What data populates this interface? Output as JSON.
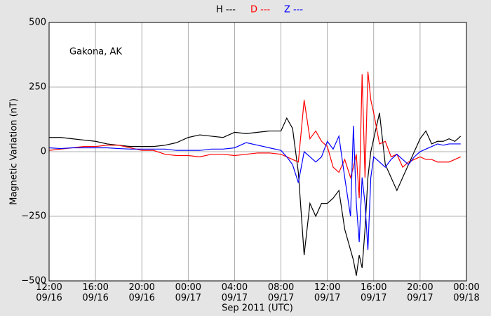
{
  "chart_data": {
    "type": "line",
    "annotation": "Gakona, AK",
    "xlabel": "Sep 2011 (UTC)",
    "ylabel": "Magnetic Variation (nT)",
    "grid": true,
    "legend": "top",
    "xlim": [
      "2011-09-16T12:00",
      "2011-09-18T00:00"
    ],
    "xticks": [
      {
        "value": "2011-09-16T12:00",
        "label": "12:00\n09/16"
      },
      {
        "value": "2011-09-16T16:00",
        "label": "16:00\n09/16"
      },
      {
        "value": "2011-09-16T20:00",
        "label": "20:00\n09/16"
      },
      {
        "value": "2011-09-17T00:00",
        "label": "00:00\n09/17"
      },
      {
        "value": "2011-09-17T04:00",
        "label": "04:00\n09/17"
      },
      {
        "value": "2011-09-17T08:00",
        "label": "08:00\n09/17"
      },
      {
        "value": "2011-09-17T12:00",
        "label": "12:00\n09/17"
      },
      {
        "value": "2011-09-17T16:00",
        "label": "16:00\n09/17"
      },
      {
        "value": "2011-09-17T20:00",
        "label": "20:00\n09/17"
      },
      {
        "value": "2011-09-18T00:00",
        "label": "00:00\n09/18"
      }
    ],
    "ylim": [
      -500,
      500
    ],
    "yticks": [
      {
        "value": -500,
        "label": "−500"
      },
      {
        "value": -250,
        "label": "−250"
      },
      0,
      250,
      500
    ],
    "x": [
      "2011-09-16T12:00",
      "2011-09-16T13:00",
      "2011-09-16T14:00",
      "2011-09-16T15:00",
      "2011-09-16T16:00",
      "2011-09-16T17:00",
      "2011-09-16T18:00",
      "2011-09-16T19:00",
      "2011-09-16T20:00",
      "2011-09-16T21:00",
      "2011-09-16T22:00",
      "2011-09-16T23:00",
      "2011-09-17T00:00",
      "2011-09-17T01:00",
      "2011-09-17T02:00",
      "2011-09-17T03:00",
      "2011-09-17T04:00",
      "2011-09-17T05:00",
      "2011-09-17T06:00",
      "2011-09-17T07:00",
      "2011-09-17T08:00",
      "2011-09-17T08:30",
      "2011-09-17T09:00",
      "2011-09-17T09:30",
      "2011-09-17T10:00",
      "2011-09-17T10:30",
      "2011-09-17T11:00",
      "2011-09-17T11:30",
      "2011-09-17T12:00",
      "2011-09-17T12:30",
      "2011-09-17T13:00",
      "2011-09-17T13:30",
      "2011-09-17T14:00",
      "2011-09-17T14:15",
      "2011-09-17T14:30",
      "2011-09-17T14:45",
      "2011-09-17T15:00",
      "2011-09-17T15:15",
      "2011-09-17T15:30",
      "2011-09-17T15:45",
      "2011-09-17T16:00",
      "2011-09-17T16:30",
      "2011-09-17T17:00",
      "2011-09-17T17:30",
      "2011-09-17T18:00",
      "2011-09-17T18:30",
      "2011-09-17T19:00",
      "2011-09-17T19:30",
      "2011-09-17T20:00",
      "2011-09-17T20:30",
      "2011-09-17T21:00",
      "2011-09-17T21:30",
      "2011-09-17T22:00",
      "2011-09-17T22:30",
      "2011-09-17T23:00",
      "2011-09-17T23:30"
    ],
    "series": [
      {
        "name": "H ---",
        "color": "#000000",
        "values": [
          55,
          55,
          50,
          45,
          40,
          30,
          25,
          20,
          20,
          20,
          25,
          35,
          55,
          65,
          60,
          55,
          75,
          70,
          75,
          80,
          80,
          130,
          90,
          -80,
          -400,
          -200,
          -250,
          -200,
          -200,
          -180,
          -150,
          -300,
          -380,
          -420,
          -480,
          -400,
          -450,
          -300,
          -100,
          0,
          50,
          150,
          -50,
          -100,
          -150,
          -100,
          -50,
          0,
          50,
          80,
          30,
          40,
          40,
          50,
          40,
          60
        ]
      },
      {
        "name": "D ---",
        "color": "#ff0000",
        "values": [
          5,
          10,
          15,
          20,
          20,
          25,
          25,
          15,
          5,
          5,
          -10,
          -15,
          -15,
          -20,
          -10,
          -10,
          -15,
          -10,
          -5,
          -5,
          -10,
          -20,
          -30,
          -40,
          200,
          50,
          80,
          40,
          20,
          -60,
          -80,
          -30,
          -100,
          -60,
          -10,
          -180,
          300,
          -100,
          310,
          200,
          150,
          30,
          40,
          -20,
          -10,
          -60,
          -40,
          -30,
          -20,
          -30,
          -30,
          -40,
          -40,
          -40,
          -30,
          -20
        ]
      },
      {
        "name": "Z ---",
        "color": "#0000ff",
        "values": [
          15,
          12,
          15,
          15,
          15,
          15,
          12,
          10,
          10,
          10,
          10,
          5,
          5,
          5,
          10,
          10,
          15,
          35,
          25,
          15,
          5,
          -20,
          -50,
          -120,
          0,
          -20,
          -40,
          -20,
          40,
          10,
          60,
          -100,
          -250,
          100,
          -200,
          -350,
          -100,
          -200,
          -380,
          -100,
          -20,
          -40,
          -60,
          -30,
          -10,
          -30,
          -50,
          -20,
          0,
          10,
          20,
          30,
          25,
          30,
          30,
          30
        ]
      }
    ]
  }
}
